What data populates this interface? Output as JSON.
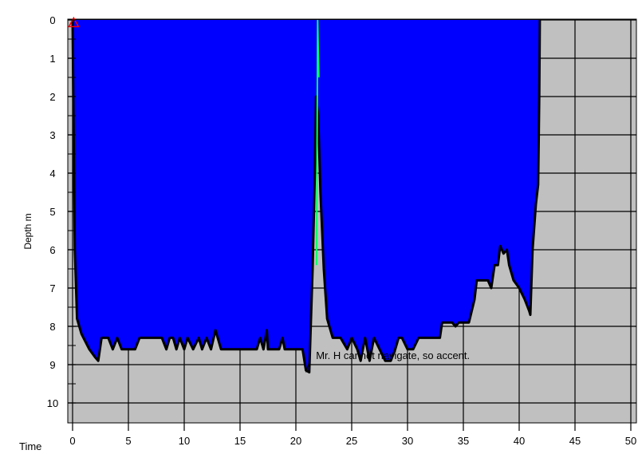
{
  "chart_data": {
    "type": "area",
    "title": "",
    "xlabel": "Time",
    "ylabel": "Depth m",
    "xlim": [
      0,
      50
    ],
    "ylim": [
      0,
      10.5
    ],
    "y_inverted": true,
    "grid": true,
    "background_color": "#c0c0c0",
    "x_ticks": [
      "0",
      "5",
      "10",
      "15",
      "20",
      "25",
      "30",
      "35",
      "40",
      "45",
      "50"
    ],
    "y_ticks": [
      "0",
      "1",
      "2",
      "3",
      "4",
      "5",
      "6",
      "7",
      "8",
      "9",
      "10"
    ],
    "fill_color": "#0000ff",
    "profile_color": "#000000",
    "ascent_marker_color": "#00ff66",
    "start_marker_color": "#ff0000",
    "series": [
      {
        "name": "",
        "points": [
          [
            0,
            0
          ],
          [
            0.1,
            3.0
          ],
          [
            0.2,
            6.0
          ],
          [
            0.4,
            7.8
          ],
          [
            0.8,
            8.2
          ],
          [
            1.5,
            8.6
          ],
          [
            2.0,
            8.8
          ],
          [
            2.3,
            8.9
          ],
          [
            2.6,
            8.3
          ],
          [
            3.2,
            8.3
          ],
          [
            3.6,
            8.6
          ],
          [
            4.0,
            8.3
          ],
          [
            4.4,
            8.6
          ],
          [
            5.0,
            8.6
          ],
          [
            5.6,
            8.6
          ],
          [
            6.0,
            8.3
          ],
          [
            7.0,
            8.3
          ],
          [
            7.5,
            8.3
          ],
          [
            8.0,
            8.3
          ],
          [
            8.4,
            8.6
          ],
          [
            8.7,
            8.3
          ],
          [
            9.0,
            8.3
          ],
          [
            9.3,
            8.6
          ],
          [
            9.6,
            8.3
          ],
          [
            10.0,
            8.6
          ],
          [
            10.3,
            8.3
          ],
          [
            10.8,
            8.6
          ],
          [
            11.3,
            8.3
          ],
          [
            11.6,
            8.6
          ],
          [
            12.0,
            8.3
          ],
          [
            12.4,
            8.6
          ],
          [
            12.8,
            8.1
          ],
          [
            13.0,
            8.3
          ],
          [
            13.3,
            8.6
          ],
          [
            15.0,
            8.6
          ],
          [
            16.5,
            8.6
          ],
          [
            16.8,
            8.3
          ],
          [
            17.1,
            8.6
          ],
          [
            17.4,
            8.1
          ],
          [
            17.5,
            8.6
          ],
          [
            18.5,
            8.6
          ],
          [
            18.8,
            8.3
          ],
          [
            19.0,
            8.6
          ],
          [
            20.0,
            8.6
          ],
          [
            20.6,
            8.6
          ],
          [
            20.9,
            9.15
          ],
          [
            21.2,
            9.2
          ],
          [
            21.5,
            6.5
          ],
          [
            21.7,
            4.0
          ],
          [
            21.8,
            2.0
          ],
          [
            22.0,
            2.5
          ],
          [
            22.2,
            4.5
          ],
          [
            22.5,
            6.5
          ],
          [
            22.8,
            7.8
          ],
          [
            23.3,
            8.3
          ],
          [
            24.0,
            8.3
          ],
          [
            24.6,
            8.6
          ],
          [
            25.0,
            8.3
          ],
          [
            25.5,
            8.6
          ],
          [
            25.8,
            8.9
          ],
          [
            26.2,
            8.3
          ],
          [
            26.6,
            8.9
          ],
          [
            27.0,
            8.3
          ],
          [
            27.5,
            8.6
          ],
          [
            28.0,
            8.9
          ],
          [
            28.5,
            8.9
          ],
          [
            28.9,
            8.6
          ],
          [
            29.2,
            8.3
          ],
          [
            29.5,
            8.3
          ],
          [
            30.0,
            8.6
          ],
          [
            30.5,
            8.6
          ],
          [
            31.0,
            8.3
          ],
          [
            32.0,
            8.3
          ],
          [
            32.9,
            8.3
          ],
          [
            33.1,
            7.9
          ],
          [
            34.0,
            7.9
          ],
          [
            34.3,
            8.0
          ],
          [
            34.6,
            7.9
          ],
          [
            35.0,
            7.9
          ],
          [
            35.5,
            7.9
          ],
          [
            36.0,
            7.3
          ],
          [
            36.2,
            6.8
          ],
          [
            36.8,
            6.8
          ],
          [
            37.2,
            6.8
          ],
          [
            37.5,
            7.0
          ],
          [
            37.8,
            6.4
          ],
          [
            38.1,
            6.4
          ],
          [
            38.3,
            5.9
          ],
          [
            38.6,
            6.1
          ],
          [
            38.9,
            6.0
          ],
          [
            39.1,
            6.4
          ],
          [
            39.5,
            6.8
          ],
          [
            40.0,
            7.0
          ],
          [
            40.5,
            7.3
          ],
          [
            40.9,
            7.6
          ],
          [
            41.0,
            7.7
          ],
          [
            41.2,
            6.0
          ],
          [
            41.5,
            4.8
          ],
          [
            41.7,
            4.3
          ],
          [
            41.8,
            2.0
          ],
          [
            41.85,
            0
          ]
        ]
      }
    ],
    "ascent_marker_points": [
      [
        21.85,
        6.4
      ],
      [
        21.95,
        0
      ],
      [
        22.05,
        1.5
      ]
    ],
    "start_marker": {
      "x": 0.1,
      "y": 0.05
    },
    "annotations": [
      {
        "text": "Mr. H cannot navigate, so accent.",
        "x": 21.8,
        "y": 8.9
      }
    ]
  }
}
